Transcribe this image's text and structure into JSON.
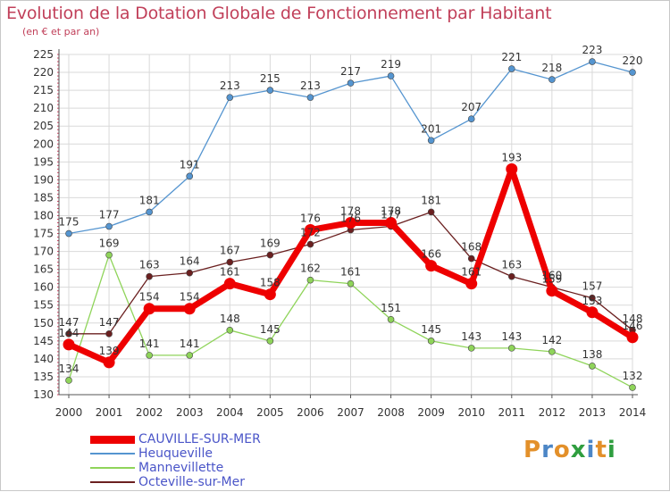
{
  "header": {
    "title": "Evolution de la Dotation Globale de Fonctionnement par Habitant",
    "subtitle": "(en € et par an)"
  },
  "logo": {
    "text": "Proxiti",
    "colors": [
      "#e3902a",
      "#4c86c6",
      "#e3902a",
      "#2f9e3f",
      "#4c86c6",
      "#e3902a",
      "#2f9e3f"
    ]
  },
  "colors": {
    "title": "#c1405a",
    "grid": "#d9d9d9",
    "axis": "#555555",
    "legend_text": "#4a55c8"
  },
  "chart_data": {
    "type": "line",
    "title": "Evolution de la Dotation Globale de Fonctionnement par Habitant",
    "subtitle": "(en € et par an)",
    "x": [
      2000,
      2001,
      2002,
      2003,
      2004,
      2005,
      2006,
      2007,
      2008,
      2009,
      2010,
      2011,
      2012,
      2013,
      2014
    ],
    "yticks": [
      130,
      135,
      140,
      145,
      150,
      155,
      160,
      165,
      170,
      175,
      180,
      185,
      190,
      195,
      200,
      205,
      210,
      215,
      220,
      225
    ],
    "ylim": [
      130,
      225
    ],
    "grid": true,
    "legend_position": "bottom-left",
    "series": [
      {
        "name": "CAUVILLE-SUR-MER",
        "color": "#ee0000",
        "values": [
          144,
          139,
          154,
          154,
          161,
          158,
          176,
          178,
          178,
          166,
          161,
          193,
          159,
          153,
          146
        ]
      },
      {
        "name": "Heuqueville",
        "color": "#5595d0",
        "values": [
          175,
          177,
          181,
          191,
          213,
          215,
          213,
          217,
          219,
          201,
          207,
          221,
          218,
          223,
          220
        ]
      },
      {
        "name": "Mannevillette",
        "color": "#8fd45a",
        "values": [
          134,
          169,
          141,
          141,
          148,
          145,
          162,
          161,
          151,
          145,
          143,
          143,
          142,
          138,
          132
        ]
      },
      {
        "name": "Octeville-sur-Mer",
        "color": "#6b2020",
        "values": [
          147,
          147,
          163,
          164,
          167,
          169,
          172,
          176,
          177,
          181,
          168,
          163,
          160,
          157,
          148
        ]
      }
    ]
  }
}
